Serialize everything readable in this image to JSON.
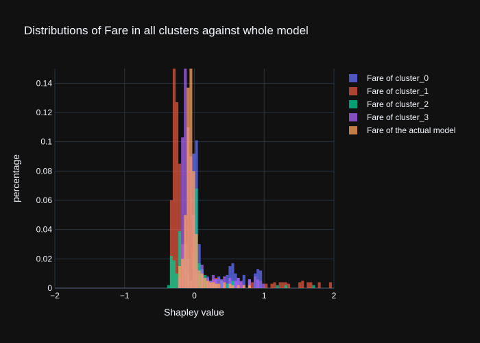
{
  "chart_data": {
    "type": "bar",
    "title": "Distributions of Fare in all clusters against whole model",
    "xlabel": "Shapley value",
    "ylabel": "percentage",
    "xlim": [
      -2,
      2
    ],
    "ylim": [
      0,
      0.15
    ],
    "x_ticks": [
      -2,
      -1,
      0,
      1,
      2
    ],
    "x_tick_labels": [
      "−2",
      "−1",
      "0",
      "1",
      "2"
    ],
    "y_ticks": [
      0,
      0.02,
      0.04,
      0.06,
      0.08,
      0.1,
      0.12,
      0.14
    ],
    "y_tick_labels": [
      "0",
      "0.02",
      "0.04",
      "0.06",
      "0.08",
      "0.1",
      "0.12",
      "0.14"
    ],
    "grid": true,
    "barmode": "overlay",
    "legend_position": "top-right",
    "bin_width": 0.04,
    "series": [
      {
        "name": "Fare of cluster_1",
        "color": "#e2563e",
        "bins": [
          [
            -0.33,
            0.06
          ],
          [
            -0.29,
            0.15
          ],
          [
            -0.25,
            0.127
          ],
          [
            -0.21,
            0.085
          ],
          [
            -0.17,
            0.03
          ],
          [
            -0.13,
            0.015
          ],
          [
            -0.09,
            0.01
          ],
          [
            -0.05,
            0.005
          ],
          [
            0.03,
            0.01
          ],
          [
            0.07,
            0.01
          ],
          [
            0.11,
            0.008
          ],
          [
            0.15,
            0.006
          ],
          [
            0.19,
            0.005
          ],
          [
            0.23,
            0.003
          ],
          [
            0.27,
            0.006
          ],
          [
            0.31,
            0.007
          ],
          [
            0.35,
            0.007
          ],
          [
            0.39,
            0.006
          ],
          [
            0.43,
            0.002
          ],
          [
            0.51,
            0.003
          ],
          [
            0.59,
            0.004
          ],
          [
            0.67,
            0.004
          ],
          [
            0.71,
            0.002
          ],
          [
            0.79,
            0.005
          ],
          [
            0.83,
            0.004
          ],
          [
            0.87,
            0.008
          ],
          [
            0.95,
            0.005
          ],
          [
            1.03,
            0.003
          ],
          [
            1.11,
            0.003
          ],
          [
            1.15,
            0.004
          ],
          [
            1.23,
            0.004
          ],
          [
            1.27,
            0.004
          ],
          [
            1.31,
            0.004
          ],
          [
            1.35,
            0.003
          ],
          [
            1.51,
            0.004
          ],
          [
            1.55,
            0.005
          ],
          [
            1.63,
            0.004
          ],
          [
            1.67,
            0.004
          ],
          [
            1.79,
            0.004
          ],
          [
            1.95,
            0.004
          ]
        ]
      },
      {
        "name": "Fare of cluster_0",
        "color": "#636efa",
        "bins": [
          [
            -0.01,
            0.092
          ],
          [
            0.03,
            0.101
          ],
          [
            0.07,
            0.03
          ],
          [
            0.11,
            0.012
          ],
          [
            0.19,
            0.008
          ],
          [
            0.31,
            0.006
          ],
          [
            0.35,
            0.008
          ],
          [
            0.39,
            0.006
          ],
          [
            0.47,
            0.009
          ],
          [
            0.51,
            0.015
          ],
          [
            0.55,
            0.017
          ],
          [
            0.59,
            0.01
          ],
          [
            0.63,
            0.007
          ],
          [
            0.71,
            0.009
          ],
          [
            0.79,
            0.006
          ],
          [
            0.87,
            0.01
          ],
          [
            0.91,
            0.013
          ],
          [
            0.95,
            0.012
          ]
        ]
      },
      {
        "name": "Fare of cluster_2",
        "color": "#00cc96",
        "bins": [
          [
            -0.37,
            0.002
          ],
          [
            -0.33,
            0.022
          ],
          [
            -0.29,
            0.019
          ],
          [
            -0.25,
            0.01
          ],
          [
            -0.21,
            0.039
          ],
          [
            -0.13,
            0.03
          ],
          [
            -0.09,
            0.02
          ],
          [
            -0.05,
            0.005
          ],
          [
            -0.01,
            0.025
          ],
          [
            0.03,
            0.068
          ],
          [
            0.07,
            0.017
          ],
          [
            0.11,
            0.013
          ],
          [
            0.15,
            0.009
          ],
          [
            0.23,
            0.005
          ],
          [
            0.27,
            0.004
          ],
          [
            0.31,
            0.003
          ],
          [
            0.39,
            0.005
          ],
          [
            0.47,
            0.003
          ],
          [
            0.55,
            0.005
          ],
          [
            1.19,
            0.002
          ],
          [
            1.31,
            0.002
          ],
          [
            1.71,
            0.002
          ]
        ]
      },
      {
        "name": "Fare of cluster_3",
        "color": "#ab63fa",
        "bins": [
          [
            -0.21,
            0.007
          ],
          [
            -0.17,
            0.103
          ],
          [
            -0.13,
            0.15
          ],
          [
            -0.09,
            0.11
          ],
          [
            -0.05,
            0.09
          ],
          [
            -0.01,
            0.05
          ],
          [
            0.03,
            0.013
          ],
          [
            0.11,
            0.016
          ],
          [
            0.19,
            0.007
          ],
          [
            0.23,
            0.005
          ],
          [
            0.27,
            0.009
          ],
          [
            0.31,
            0.006
          ],
          [
            0.39,
            0.005
          ],
          [
            0.43,
            0.008
          ],
          [
            0.51,
            0.007
          ],
          [
            0.59,
            0.005
          ],
          [
            0.63,
            0.007
          ],
          [
            0.67,
            0.005
          ],
          [
            0.79,
            0.006
          ],
          [
            0.91,
            0.006
          ],
          [
            0.99,
            0.003
          ]
        ]
      },
      {
        "name": "Fare of the actual model",
        "color": "#ffa15a",
        "bins": [
          [
            -0.21,
            0.015
          ],
          [
            -0.17,
            0.02
          ],
          [
            -0.13,
            0.05
          ],
          [
            -0.09,
            0.137
          ],
          [
            -0.05,
            0.15
          ],
          [
            -0.01,
            0.08
          ],
          [
            0.03,
            0.037
          ],
          [
            0.07,
            0.012
          ],
          [
            0.11,
            0.01
          ],
          [
            0.15,
            0.007
          ],
          [
            0.19,
            0.005
          ],
          [
            0.23,
            0.004
          ],
          [
            0.27,
            0.004
          ],
          [
            0.31,
            0.003
          ],
          [
            0.35,
            0.003
          ],
          [
            0.43,
            0.004
          ],
          [
            0.51,
            0.003
          ],
          [
            0.55,
            0.002
          ],
          [
            0.63,
            0.002
          ],
          [
            0.71,
            0.002
          ],
          [
            0.79,
            0.002
          ]
        ]
      }
    ],
    "legend": [
      {
        "name": "Fare of cluster_0",
        "color": "#636efa"
      },
      {
        "name": "Fare of cluster_1",
        "color": "#e2563e"
      },
      {
        "name": "Fare of cluster_2",
        "color": "#00cc96"
      },
      {
        "name": "Fare of cluster_3",
        "color": "#ab63fa"
      },
      {
        "name": "Fare of the actual model",
        "color": "#ffa15a"
      }
    ]
  }
}
